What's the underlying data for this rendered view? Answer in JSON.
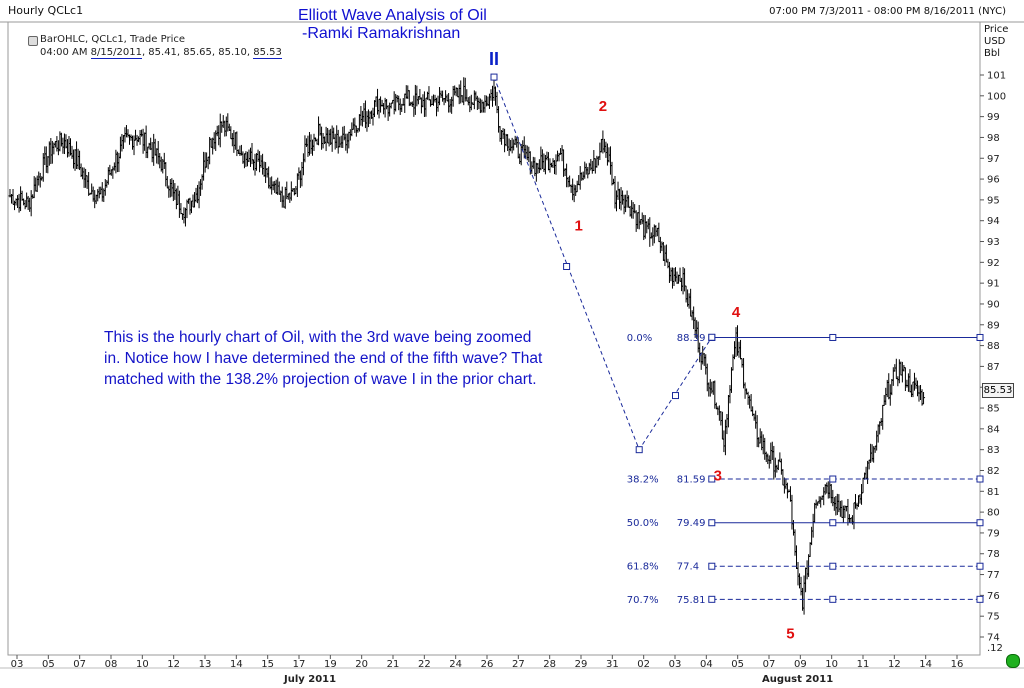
{
  "header": {
    "symbol": "Hourly QCLc1",
    "date_range": "07:00 PM 7/3/2011 - 08:00 PM 8/16/2011 (NYC)",
    "legend_line1": "BarOHLC, QCLc1, Trade Price",
    "legend_time": "04:00 AM",
    "legend_date": "8/15/2011",
    "legend_values": ", 85.41, 85.65, 85.10, ",
    "legend_last": "85.53"
  },
  "title": {
    "line1": "Elliott Wave Analysis of Oil",
    "line2": "-Ramki Ramakrishnan"
  },
  "annotation": "This is the hourly chart of Oil, with the 3rd wave being zoomed in. Notice how I have determined the end of the fifth wave? That matched with the 138.2% projection of wave I in the prior chart.",
  "right_axis": {
    "unit_lines": [
      "Price",
      "USD",
      "Bbl"
    ],
    "last_price": "85.53",
    "last_tag_text": "85.53",
    "scale_tag": ".12"
  },
  "x_axis": {
    "months": [
      "July 2011",
      "August 2011"
    ]
  },
  "colors": {
    "bars": "#000000",
    "wave_labels": "#e01010",
    "title": "#1010d0",
    "fib_lines": "#1a2a9a",
    "projection": "#1a2a9a",
    "status": "#1fb01f"
  },
  "chart_data": {
    "type": "bar",
    "style": "OHLC",
    "ylim": [
      73,
      102
    ],
    "y_ticks": [
      74,
      75,
      76,
      77,
      78,
      79,
      80,
      81,
      82,
      83,
      84,
      85,
      86,
      87,
      88,
      89,
      90,
      91,
      92,
      93,
      94,
      95,
      96,
      97,
      98,
      99,
      100,
      101
    ],
    "x_ticks": [
      "03",
      "05",
      "07",
      "08",
      "10",
      "12",
      "13",
      "14",
      "15",
      "17",
      "19",
      "20",
      "21",
      "22",
      "24",
      "26",
      "27",
      "28",
      "29",
      "31",
      "02",
      "03",
      "04",
      "05",
      "07",
      "09",
      "10",
      "11",
      "12",
      "14",
      "16"
    ],
    "price_path": [
      [
        0,
        95.2
      ],
      [
        3,
        94.8
      ],
      [
        5,
        96.3
      ],
      [
        7,
        97.6
      ],
      [
        9,
        97.8
      ],
      [
        11,
        96.9
      ],
      [
        13,
        95.6
      ],
      [
        15,
        95.1
      ],
      [
        17,
        96.7
      ],
      [
        19,
        97.8
      ],
      [
        21,
        98.1
      ],
      [
        23,
        97.6
      ],
      [
        25,
        96.8
      ],
      [
        27,
        95.2
      ],
      [
        29,
        94.5
      ],
      [
        31,
        95.4
      ],
      [
        33,
        97.8
      ],
      [
        35,
        98.6
      ],
      [
        37,
        98.0
      ],
      [
        39,
        97.0
      ],
      [
        41,
        96.8
      ],
      [
        43,
        95.6
      ],
      [
        45,
        95.0
      ],
      [
        47,
        95.3
      ],
      [
        49,
        97.5
      ],
      [
        51,
        98.2
      ],
      [
        53,
        97.9
      ],
      [
        55,
        97.8
      ],
      [
        57,
        98.7
      ],
      [
        59,
        99.1
      ],
      [
        61,
        99.8
      ],
      [
        63,
        99.3
      ],
      [
        65,
        99.9
      ],
      [
        67,
        99.7
      ],
      [
        69,
        99.7
      ],
      [
        71,
        99.8
      ],
      [
        73,
        99.9
      ],
      [
        75,
        100.1
      ],
      [
        77,
        99.6
      ],
      [
        79,
        99.8
      ],
      [
        80,
        100.3
      ],
      [
        81,
        98.4
      ],
      [
        83,
        97.6
      ],
      [
        85,
        97.1
      ],
      [
        87,
        96.6
      ],
      [
        89,
        96.9
      ],
      [
        91,
        97.2
      ],
      [
        93,
        95.6
      ],
      [
        95,
        96.2
      ],
      [
        97,
        96.9
      ],
      [
        98,
        97.8
      ],
      [
        99,
        96.9
      ],
      [
        100,
        95.2
      ],
      [
        101,
        95.3
      ],
      [
        103,
        94.5
      ],
      [
        105,
        93.5
      ],
      [
        107,
        93.3
      ],
      [
        109,
        91.5
      ],
      [
        111,
        91.3
      ],
      [
        113,
        89.1
      ],
      [
        115,
        86.8
      ],
      [
        117,
        85.2
      ],
      [
        118,
        83.4
      ],
      [
        119,
        86.3
      ],
      [
        120,
        88.2
      ],
      [
        121,
        86.9
      ],
      [
        123,
        84.1
      ],
      [
        125,
        82.8
      ],
      [
        127,
        82.2
      ],
      [
        129,
        80.5
      ],
      [
        130,
        77.0
      ],
      [
        131,
        75.8
      ],
      [
        132,
        77.9
      ],
      [
        133,
        80.5
      ],
      [
        135,
        81.4
      ],
      [
        137,
        80.3
      ],
      [
        139,
        79.6
      ],
      [
        141,
        81.5
      ],
      [
        143,
        83.1
      ],
      [
        145,
        85.8
      ],
      [
        147,
        86.9
      ],
      [
        149,
        86.0
      ],
      [
        151,
        85.5
      ]
    ],
    "wave_labels": [
      {
        "label": "II",
        "x": 80,
        "y": 100.9
      },
      {
        "label": "1",
        "x": 94,
        "y": 94.2
      },
      {
        "label": "2",
        "x": 98,
        "y": 98.8
      },
      {
        "label": "3",
        "x": 117,
        "y": 82.2
      },
      {
        "label": "4",
        "x": 120,
        "y": 88.9
      },
      {
        "label": "5",
        "x": 129,
        "y": 74.6
      }
    ],
    "projection_line": [
      [
        80,
        100.9
      ],
      [
        104,
        83.0
      ],
      [
        116,
        88.4
      ]
    ],
    "projection_mid_points": [
      [
        92,
        91.8
      ],
      [
        110,
        85.6
      ]
    ],
    "fib_levels": [
      {
        "pct": "0.0%",
        "value": "88.39",
        "price": 88.39,
        "style": "solid"
      },
      {
        "pct": "38.2%",
        "value": "81.59",
        "price": 81.59,
        "style": "dashed"
      },
      {
        "pct": "50.0%",
        "value": "79.49",
        "price": 79.49,
        "style": "solid"
      },
      {
        "pct": "61.8%",
        "value": "77.4",
        "price": 77.4,
        "style": "dashed"
      },
      {
        "pct": "70.7%",
        "value": "75.81",
        "price": 75.81,
        "style": "dashed"
      }
    ],
    "fib_x_start": 116,
    "fib_x_handle": 136
  }
}
